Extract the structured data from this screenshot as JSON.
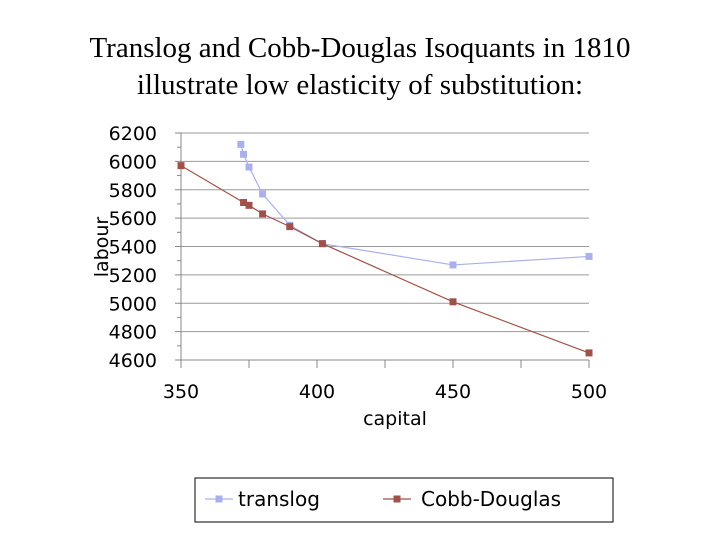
{
  "slide": {
    "title_line1": "Translog and Cobb-Douglas Isoquants in 1810",
    "title_line2": "illustrate low elasticity of substitution:"
  },
  "colors": {
    "translog": "#aab0ec",
    "cobb_douglas": "#a0524a",
    "grid": "#9a9a9a",
    "axis": "#888888"
  },
  "chart_data": {
    "type": "line",
    "title": "",
    "xlabel": "capital",
    "ylabel": "labour",
    "xlim": [
      350,
      500
    ],
    "ylim": [
      4600,
      6200
    ],
    "x_ticks": [
      350,
      400,
      450,
      500
    ],
    "y_ticks": [
      4600,
      4800,
      5000,
      5200,
      5400,
      5600,
      5800,
      6000,
      6200
    ],
    "x_tick_labels": [
      "350",
      "400",
      "450",
      "500"
    ],
    "y_tick_labels": [
      "4600",
      "4800",
      "5000",
      "5200",
      "5400",
      "5600",
      "5800",
      "6000",
      "6200"
    ],
    "grid": "horizontal",
    "legend_position": "bottom",
    "series": [
      {
        "name": "translog",
        "color": "#aab0ec",
        "marker": "square",
        "points": [
          [
            372,
            6120
          ],
          [
            373,
            6050
          ],
          [
            375,
            5960
          ],
          [
            380,
            5770
          ],
          [
            390,
            5550
          ],
          [
            402,
            5420
          ],
          [
            450,
            5270
          ],
          [
            500,
            5330
          ]
        ]
      },
      {
        "name": "Cobb-Douglas",
        "color": "#a0524a",
        "marker": "square",
        "points": [
          [
            350,
            5970
          ],
          [
            373,
            5710
          ],
          [
            375,
            5690
          ],
          [
            380,
            5630
          ],
          [
            390,
            5540
          ],
          [
            402,
            5420
          ],
          [
            450,
            5010
          ],
          [
            500,
            4650
          ]
        ]
      }
    ]
  }
}
